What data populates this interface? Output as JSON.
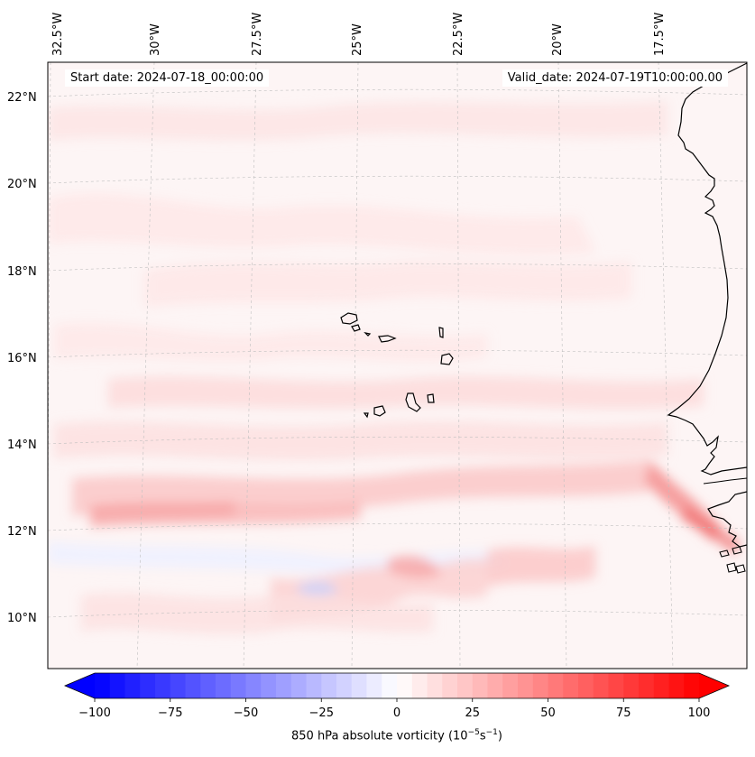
{
  "figure": {
    "start_date": "Start date: 2024-07-18_00:00:00",
    "valid_date": "Valid_date: 2024-07-19T10:00:00.00"
  },
  "map": {
    "lon_labels": [
      "32.5°W",
      "30°W",
      "27.5°W",
      "25°W",
      "22.5°W",
      "20°W",
      "17.5°W"
    ],
    "lat_labels": [
      "22°N",
      "20°N",
      "18°N",
      "16°N",
      "14°N",
      "12°N",
      "10°N"
    ]
  },
  "colorbar": {
    "ticks": [
      "−100",
      "−75",
      "−50",
      "−25",
      "0",
      "25",
      "50",
      "75",
      "100"
    ],
    "label_main": "850 hPa absolute vorticity (10",
    "label_exp1": "−5",
    "label_mid": "s",
    "label_exp2": "−1",
    "label_end": ")",
    "vmin": -100,
    "vmax": 100,
    "levels": 40,
    "low_color": "#0000ff",
    "mid_color": "#ffffff",
    "high_color": "#ff0000"
  },
  "colors": {
    "land_outline": "#000000",
    "grid": "#bbbbbb",
    "field_base": "#fdf4f4"
  }
}
